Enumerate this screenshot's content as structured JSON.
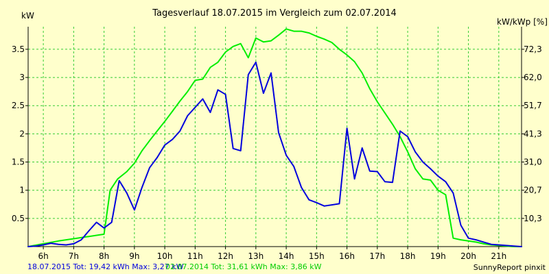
{
  "chart_data": {
    "type": "line",
    "title": "Tagesverlauf 18.07.2015 im Vergleich zum 02.07.2014",
    "ylabel_left": "kW",
    "ylabel_right": "kW/kWp [%]",
    "x_ticks": [
      "6h",
      "7h",
      "8h",
      "9h",
      "10h",
      "11h",
      "12h",
      "13h",
      "14h",
      "15h",
      "16h",
      "17h",
      "18h",
      "19h",
      "20h",
      "21h"
    ],
    "xlim": [
      5.5,
      21.75
    ],
    "ylim": [
      0,
      3.9
    ],
    "y_ticks_left": [
      "0.5",
      "1",
      "1.5",
      "2",
      "2.5",
      "3",
      "3.5"
    ],
    "y_ticks_left_values": [
      0.5,
      1,
      1.5,
      2,
      2.5,
      3,
      3.5
    ],
    "y_ticks_right": [
      "10,3",
      "20,7",
      "31,0",
      "41,3",
      "51,7",
      "62,0",
      "72,3"
    ],
    "grid": true,
    "series": [
      {
        "name": "18.07.2015",
        "color": "#0000dd",
        "x": [
          5.5,
          5.75,
          6.0,
          6.25,
          6.5,
          6.75,
          7.0,
          7.25,
          7.5,
          7.75,
          8.0,
          8.25,
          8.5,
          8.75,
          9.0,
          9.25,
          9.5,
          9.75,
          10.0,
          10.25,
          10.5,
          10.75,
          11.0,
          11.25,
          11.5,
          11.75,
          12.0,
          12.25,
          12.5,
          12.75,
          13.0,
          13.25,
          13.5,
          13.75,
          14.0,
          14.25,
          14.5,
          14.75,
          15.0,
          15.25,
          15.5,
          15.75,
          16.0,
          16.25,
          16.5,
          16.75,
          17.0,
          17.25,
          17.5,
          17.75,
          18.0,
          18.25,
          18.5,
          18.75,
          19.0,
          19.25,
          19.5,
          19.75,
          20.0,
          20.25,
          20.5,
          20.75,
          21.0,
          21.25,
          21.5,
          21.75
        ],
        "y": [
          0.0,
          0.01,
          0.03,
          0.06,
          0.04,
          0.03,
          0.05,
          0.12,
          0.28,
          0.43,
          0.33,
          0.43,
          1.17,
          0.95,
          0.65,
          1.05,
          1.4,
          1.58,
          1.8,
          1.9,
          2.05,
          2.32,
          2.47,
          2.62,
          2.38,
          2.78,
          2.7,
          1.74,
          1.7,
          3.05,
          3.27,
          2.72,
          3.08,
          2.02,
          1.62,
          1.42,
          1.05,
          0.83,
          0.78,
          0.72,
          0.74,
          0.76,
          2.1,
          1.2,
          1.75,
          1.34,
          1.33,
          1.15,
          1.14,
          2.05,
          1.95,
          1.68,
          1.5,
          1.38,
          1.25,
          1.15,
          0.95,
          0.38,
          0.15,
          0.12,
          0.08,
          0.04,
          0.03,
          0.02,
          0.01,
          0.0
        ]
      },
      {
        "name": "02.07.2014",
        "color": "#00ee00",
        "x": [
          5.5,
          6.0,
          6.5,
          7.0,
          7.5,
          8.0,
          8.2,
          8.45,
          8.75,
          9.0,
          9.25,
          9.5,
          9.75,
          10.0,
          10.25,
          10.5,
          10.75,
          11.0,
          11.25,
          11.5,
          11.75,
          12.0,
          12.25,
          12.5,
          12.75,
          13.0,
          13.25,
          13.5,
          13.75,
          14.0,
          14.25,
          14.5,
          14.75,
          15.0,
          15.25,
          15.5,
          15.75,
          16.0,
          16.25,
          16.5,
          16.75,
          17.0,
          17.25,
          17.5,
          17.75,
          18.0,
          18.25,
          18.5,
          18.75,
          19.0,
          19.25,
          19.5,
          19.75,
          20.0,
          20.25,
          20.5,
          20.75,
          21.0,
          21.25,
          21.5,
          21.75
        ],
        "y": [
          0.0,
          0.05,
          0.1,
          0.14,
          0.18,
          0.22,
          1.0,
          1.2,
          1.33,
          1.48,
          1.7,
          1.88,
          2.05,
          2.22,
          2.4,
          2.58,
          2.75,
          2.95,
          2.97,
          3.18,
          3.27,
          3.45,
          3.55,
          3.6,
          3.35,
          3.7,
          3.63,
          3.65,
          3.75,
          3.86,
          3.82,
          3.82,
          3.79,
          3.73,
          3.68,
          3.62,
          3.5,
          3.4,
          3.28,
          3.08,
          2.8,
          2.57,
          2.37,
          2.17,
          1.95,
          1.68,
          1.38,
          1.2,
          1.18,
          1.0,
          0.92,
          0.15,
          0.12,
          0.1,
          0.08,
          0.05,
          0.03,
          0.02,
          0.01,
          0.0,
          0.0
        ]
      }
    ],
    "footer": {
      "series1_text": "18.07.2015 Tot: 19,42 kWh Max: 3,27 kW",
      "series2_text": "02.07.2014 Tot: 31,61 kWh Max: 3,86 kW",
      "credit": "SunnyReport pinxit"
    }
  }
}
